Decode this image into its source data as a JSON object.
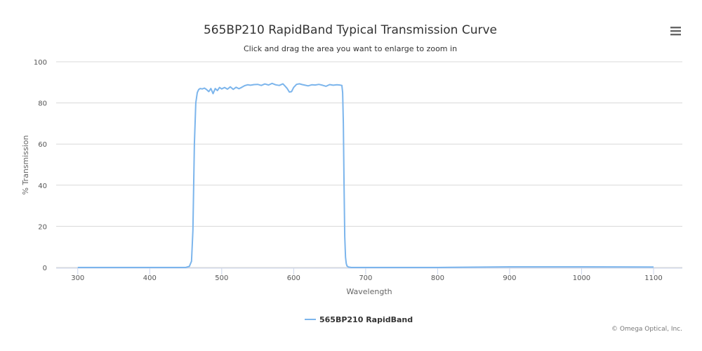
{
  "chart_data": {
    "type": "line",
    "title": "565BP210 RapidBand Typical Transmission Curve",
    "subtitle": "Click and drag the area you want to enlarge to zoom in",
    "xlabel": "Wavelength",
    "ylabel": "% Transmission",
    "xlim": [
      270,
      1140
    ],
    "ylim": [
      0,
      100
    ],
    "x_ticks": [
      300,
      400,
      500,
      600,
      700,
      800,
      900,
      1000,
      1100
    ],
    "y_ticks": [
      0,
      20,
      40,
      60,
      80,
      100
    ],
    "grid": true,
    "legend_position": "bottom-center",
    "series": [
      {
        "name": "565BP210 RapidBand",
        "color": "#7cb5ec",
        "x": [
          300,
          400,
          450,
          455,
          458,
          460,
          462,
          464,
          466,
          468,
          470,
          473,
          476,
          479,
          482,
          485,
          488,
          491,
          494,
          497,
          500,
          504,
          508,
          512,
          516,
          520,
          524,
          528,
          532,
          536,
          540,
          545,
          550,
          555,
          560,
          565,
          570,
          575,
          580,
          585,
          588,
          591,
          594,
          597,
          600,
          604,
          608,
          612,
          616,
          620,
          625,
          630,
          635,
          640,
          645,
          650,
          655,
          660,
          664,
          667,
          668,
          669,
          670,
          671,
          672,
          673,
          674,
          676,
          680,
          700,
          800,
          900,
          1000,
          1100
        ],
        "y": [
          0,
          0,
          0,
          0.5,
          3,
          18,
          60,
          80,
          85,
          86.5,
          87,
          86.8,
          87.2,
          86.5,
          85.5,
          87,
          84.5,
          87,
          86,
          87.5,
          86.8,
          87.5,
          86.7,
          87.8,
          86.6,
          87.6,
          86.9,
          87.6,
          88.4,
          88.8,
          88.6,
          88.9,
          89,
          88.5,
          89.2,
          88.7,
          89.5,
          88.8,
          88.5,
          89.3,
          88.2,
          87,
          85.3,
          85.5,
          87.5,
          89,
          89.3,
          88.9,
          88.6,
          88.3,
          88.8,
          88.7,
          89,
          88.6,
          88.1,
          88.9,
          88.6,
          88.8,
          88.7,
          88.5,
          85,
          70,
          40,
          15,
          5,
          2,
          0.8,
          0.2,
          0,
          0,
          0,
          0.3,
          0.3,
          0.2
        ]
      }
    ]
  },
  "ui": {
    "menu_icon": "hamburger-icon",
    "credits": "© Omega Optical, Inc."
  }
}
